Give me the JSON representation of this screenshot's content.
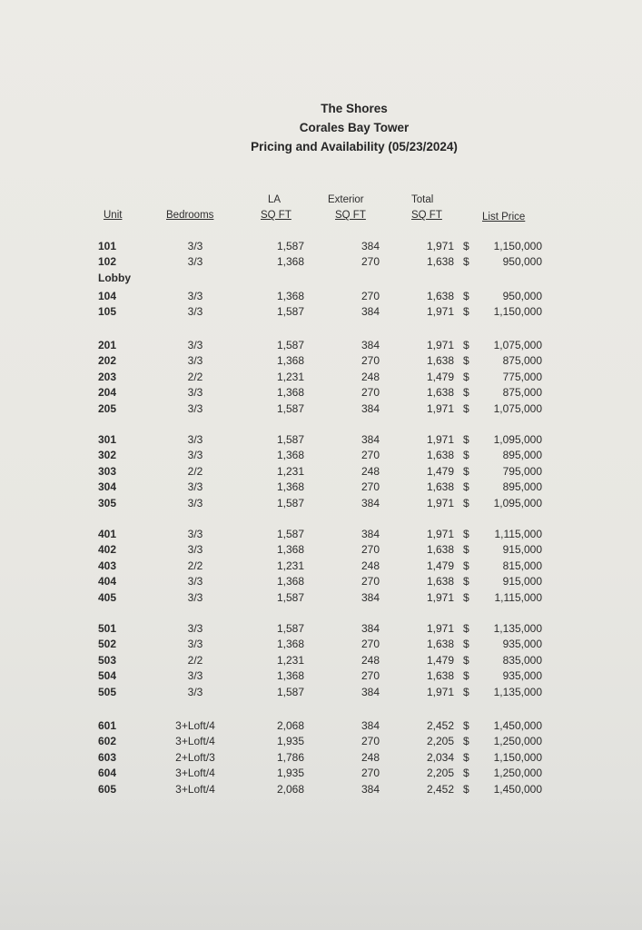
{
  "document": {
    "title_lines": [
      "The Shores",
      "Corales Bay Tower",
      "Pricing and Availability (05/23/2024)"
    ],
    "headers": {
      "unit": "Unit",
      "bedrooms": "Bedrooms",
      "la_top": "LA",
      "la_bottom": "SQ FT",
      "exterior_top": "Exterior",
      "exterior_bottom": "SQ FT",
      "total_top": "Total",
      "total_bottom": "SQ FT",
      "list_price": "List Price"
    },
    "currency_symbol": "$",
    "floors": [
      {
        "rows": [
          {
            "unit": "101",
            "bedrooms": "3/3",
            "la": "1,587",
            "exterior": "384",
            "total": "1,971",
            "price": "1,150,000"
          },
          {
            "unit": "102",
            "bedrooms": "3/3",
            "la": "1,368",
            "exterior": "270",
            "total": "1,638",
            "price": "950,000"
          },
          {
            "unit": "Lobby"
          },
          {
            "unit": "104",
            "bedrooms": "3/3",
            "la": "1,368",
            "exterior": "270",
            "total": "1,638",
            "price": "950,000"
          },
          {
            "unit": "105",
            "bedrooms": "3/3",
            "la": "1,587",
            "exterior": "384",
            "total": "1,971",
            "price": "1,150,000"
          }
        ]
      },
      {
        "rows": [
          {
            "unit": "201",
            "bedrooms": "3/3",
            "la": "1,587",
            "exterior": "384",
            "total": "1,971",
            "price": "1,075,000"
          },
          {
            "unit": "202",
            "bedrooms": "3/3",
            "la": "1,368",
            "exterior": "270",
            "total": "1,638",
            "price": "875,000"
          },
          {
            "unit": "203",
            "bedrooms": "2/2",
            "la": "1,231",
            "exterior": "248",
            "total": "1,479",
            "price": "775,000"
          },
          {
            "unit": "204",
            "bedrooms": "3/3",
            "la": "1,368",
            "exterior": "270",
            "total": "1,638",
            "price": "875,000"
          },
          {
            "unit": "205",
            "bedrooms": "3/3",
            "la": "1,587",
            "exterior": "384",
            "total": "1,971",
            "price": "1,075,000"
          }
        ]
      },
      {
        "rows": [
          {
            "unit": "301",
            "bedrooms": "3/3",
            "la": "1,587",
            "exterior": "384",
            "total": "1,971",
            "price": "1,095,000"
          },
          {
            "unit": "302",
            "bedrooms": "3/3",
            "la": "1,368",
            "exterior": "270",
            "total": "1,638",
            "price": "895,000"
          },
          {
            "unit": "303",
            "bedrooms": "2/2",
            "la": "1,231",
            "exterior": "248",
            "total": "1,479",
            "price": "795,000"
          },
          {
            "unit": "304",
            "bedrooms": "3/3",
            "la": "1,368",
            "exterior": "270",
            "total": "1,638",
            "price": "895,000"
          },
          {
            "unit": "305",
            "bedrooms": "3/3",
            "la": "1,587",
            "exterior": "384",
            "total": "1,971",
            "price": "1,095,000"
          }
        ]
      },
      {
        "rows": [
          {
            "unit": "401",
            "bedrooms": "3/3",
            "la": "1,587",
            "exterior": "384",
            "total": "1,971",
            "price": "1,115,000"
          },
          {
            "unit": "402",
            "bedrooms": "3/3",
            "la": "1,368",
            "exterior": "270",
            "total": "1,638",
            "price": "915,000"
          },
          {
            "unit": "403",
            "bedrooms": "2/2",
            "la": "1,231",
            "exterior": "248",
            "total": "1,479",
            "price": "815,000"
          },
          {
            "unit": "404",
            "bedrooms": "3/3",
            "la": "1,368",
            "exterior": "270",
            "total": "1,638",
            "price": "915,000"
          },
          {
            "unit": "405",
            "bedrooms": "3/3",
            "la": "1,587",
            "exterior": "384",
            "total": "1,971",
            "price": "1,115,000"
          }
        ]
      },
      {
        "rows": [
          {
            "unit": "501",
            "bedrooms": "3/3",
            "la": "1,587",
            "exterior": "384",
            "total": "1,971",
            "price": "1,135,000"
          },
          {
            "unit": "502",
            "bedrooms": "3/3",
            "la": "1,368",
            "exterior": "270",
            "total": "1,638",
            "price": "935,000"
          },
          {
            "unit": "503",
            "bedrooms": "2/2",
            "la": "1,231",
            "exterior": "248",
            "total": "1,479",
            "price": "835,000"
          },
          {
            "unit": "504",
            "bedrooms": "3/3",
            "la": "1,368",
            "exterior": "270",
            "total": "1,638",
            "price": "935,000"
          },
          {
            "unit": "505",
            "bedrooms": "3/3",
            "la": "1,587",
            "exterior": "384",
            "total": "1,971",
            "price": "1,135,000"
          }
        ]
      },
      {
        "rows": [
          {
            "unit": "601",
            "bedrooms": "3+Loft/4",
            "la": "2,068",
            "exterior": "384",
            "total": "2,452",
            "price": "1,450,000"
          },
          {
            "unit": "602",
            "bedrooms": "3+Loft/4",
            "la": "1,935",
            "exterior": "270",
            "total": "2,205",
            "price": "1,250,000"
          },
          {
            "unit": "603",
            "bedrooms": "2+Loft/3",
            "la": "1,786",
            "exterior": "248",
            "total": "2,034",
            "price": "1,150,000"
          },
          {
            "unit": "604",
            "bedrooms": "3+Loft/4",
            "la": "1,935",
            "exterior": "270",
            "total": "2,205",
            "price": "1,250,000"
          },
          {
            "unit": "605",
            "bedrooms": "3+Loft/4",
            "la": "2,068",
            "exterior": "384",
            "total": "2,452",
            "price": "1,450,000"
          }
        ]
      }
    ]
  }
}
